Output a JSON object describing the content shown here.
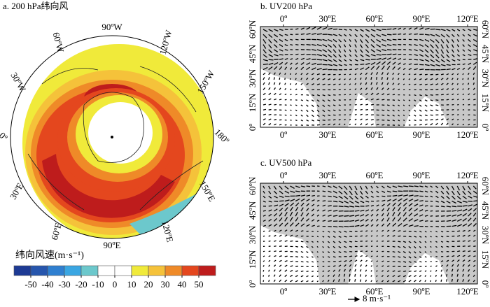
{
  "panel_a": {
    "title": "a. 200 hPa纬向风",
    "lon_labels": [
      "90ºW",
      "120ºW",
      "150ºW",
      "180º",
      "150ºE",
      "120ºE",
      "90ºE",
      "60ºE",
      "30ºE",
      "0º",
      "30ºW",
      "60ºW"
    ]
  },
  "colorbar": {
    "title": "纬向风速(m·s⁻¹)",
    "ticks": [
      -50,
      -40,
      -30,
      -20,
      -10,
      0,
      10,
      20,
      30,
      40,
      50
    ],
    "colors": [
      "#1d3a94",
      "#2756ad",
      "#2f7fd0",
      "#3aa6e2",
      "#6cc8cc",
      "#ffffff",
      "#ffffff",
      "#f0ea3a",
      "#f5c23a",
      "#ef8a28",
      "#e4471e",
      "#be1c1c"
    ]
  },
  "panel_b": {
    "title": "b. UV200 hPa"
  },
  "panel_c": {
    "title": "c. UV500 hPa"
  },
  "lon_labels": [
    "0º",
    "30ºE",
    "60ºE",
    "90ºE",
    "120ºE"
  ],
  "lat_labels": [
    "60ºN",
    "45ºN",
    "30ºN",
    "15ºN",
    "0º"
  ],
  "reference_vector": "8 m·s⁻¹"
}
